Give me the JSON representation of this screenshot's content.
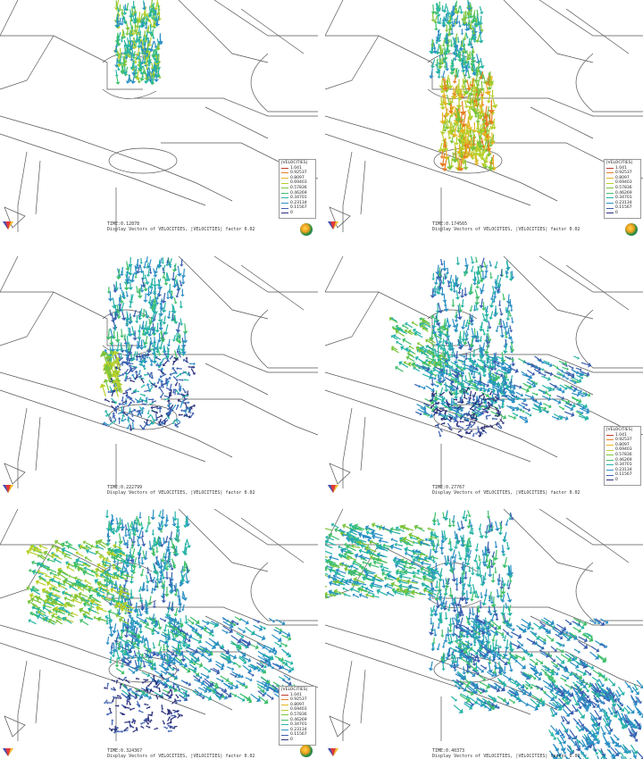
{
  "caption": "Display Vectors of VELOCITIES, |VELOCITIES| factor 0.02",
  "legend": {
    "title": "|VELOCITIES|",
    "values": [
      "1.041",
      "0.92537",
      "0.8097",
      "0.69403",
      "0.57836",
      "0.46269",
      "0.34701",
      "0.23134",
      "0.11567",
      "0"
    ],
    "colors": [
      "#c0392b",
      "#e67e22",
      "#e6b422",
      "#b8cf2a",
      "#7cc43a",
      "#3fbf6a",
      "#25b3a5",
      "#2b8fc4",
      "#3a5fb0",
      "#2a2f7a"
    ]
  },
  "panels": [
    {
      "id": "p1",
      "time": "TIME:0.12878",
      "show_legend": true
    },
    {
      "id": "p2",
      "time": "TIME:0.174565",
      "show_legend": true
    },
    {
      "id": "p3",
      "time": "TIME:0.222799",
      "show_legend": false
    },
    {
      "id": "p4",
      "time": "TIME:0.27767",
      "show_legend": true
    },
    {
      "id": "p5",
      "time": "TIME:0.324367",
      "show_legend": true
    },
    {
      "id": "p6",
      "time": "TIME:0.40373",
      "show_legend": false
    }
  ],
  "icons": {
    "logo": "software-logo-icon",
    "axes": "axis-triad-icon"
  }
}
